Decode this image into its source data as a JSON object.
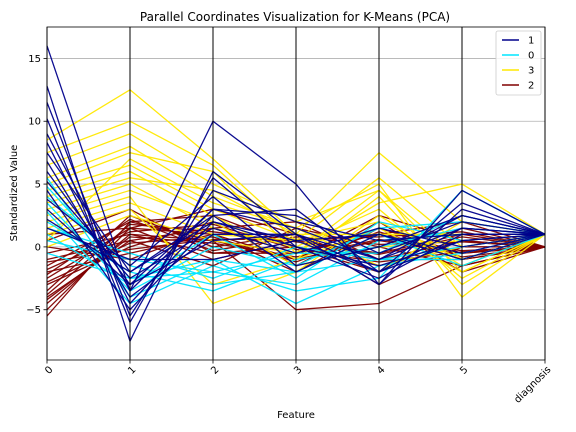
{
  "chart_data": {
    "type": "line",
    "subtype": "parallel-coordinates",
    "title": "Parallel Coordinates Visualization for K-Means (PCA)",
    "xlabel": "Feature",
    "ylabel": "Standardized Value",
    "categories": [
      "0",
      "1",
      "2",
      "3",
      "4",
      "5",
      "diagnosis"
    ],
    "ylim": [
      -9,
      17.5
    ],
    "yticks": [
      -5,
      0,
      5,
      10,
      15
    ],
    "grid": true,
    "legend_position": "top-right",
    "series": [
      {
        "name": "1",
        "color": "#00008b",
        "lines": [
          [
            16.0,
            -3.5,
            10.0,
            5.0,
            -3.0,
            4.5,
            1.0
          ],
          [
            12.8,
            -7.5,
            6.0,
            1.0,
            -2.0,
            3.5,
            1.0
          ],
          [
            11.5,
            -5.5,
            4.5,
            2.0,
            0.5,
            1.0,
            1.0
          ],
          [
            10.2,
            -6.0,
            5.5,
            0.0,
            -1.5,
            0.5,
            1.0
          ],
          [
            9.0,
            -3.5,
            3.0,
            1.5,
            -1.0,
            2.5,
            1.0
          ],
          [
            8.3,
            -4.5,
            2.5,
            3.0,
            -2.0,
            1.5,
            1.0
          ],
          [
            7.5,
            -2.0,
            2.0,
            0.5,
            1.0,
            -0.5,
            1.0
          ],
          [
            6.8,
            -4.0,
            1.0,
            1.0,
            -3.0,
            3.0,
            1.0
          ],
          [
            6.0,
            -3.0,
            3.0,
            2.5,
            -0.5,
            2.0,
            1.0
          ],
          [
            5.2,
            -2.5,
            1.5,
            -0.5,
            1.5,
            0.0,
            1.0
          ],
          [
            4.5,
            -5.0,
            2.0,
            0.0,
            -2.5,
            1.0,
            1.0
          ],
          [
            3.8,
            -1.5,
            4.0,
            -1.5,
            0.0,
            2.5,
            1.0
          ],
          [
            3.0,
            -3.0,
            0.5,
            1.0,
            -1.0,
            1.5,
            1.0
          ],
          [
            2.2,
            -2.0,
            2.5,
            -2.0,
            1.0,
            -1.0,
            1.0
          ],
          [
            1.5,
            -1.0,
            -1.0,
            0.5,
            -2.0,
            0.5,
            1.0
          ]
        ]
      },
      {
        "name": "0",
        "color": "#00e5ff",
        "lines": [
          [
            5.5,
            -4.0,
            -1.0,
            -4.5,
            -1.5,
            -0.5,
            1.0
          ],
          [
            4.8,
            -2.5,
            -2.0,
            -3.0,
            0.5,
            1.0,
            1.0
          ],
          [
            4.0,
            -1.5,
            -3.0,
            -2.0,
            -1.0,
            0.0,
            1.0
          ],
          [
            3.5,
            -3.5,
            0.0,
            -1.5,
            1.5,
            2.0,
            1.0
          ],
          [
            2.8,
            -4.5,
            -1.5,
            -3.5,
            -2.5,
            4.5,
            1.0
          ],
          [
            2.0,
            -2.0,
            -3.5,
            -1.0,
            0.0,
            1.5,
            1.0
          ],
          [
            1.5,
            -0.5,
            -2.5,
            0.0,
            -1.0,
            -1.0,
            1.0
          ],
          [
            1.0,
            -3.0,
            1.0,
            -2.5,
            2.0,
            0.5,
            1.0
          ],
          [
            0.5,
            -1.0,
            -2.0,
            -0.5,
            -0.5,
            2.5,
            1.0
          ],
          [
            -0.5,
            -2.5,
            -1.0,
            -2.0,
            1.0,
            -1.5,
            1.0
          ]
        ]
      },
      {
        "name": "3",
        "color": "#ffe800",
        "lines": [
          [
            8.5,
            12.5,
            7.0,
            1.0,
            7.5,
            2.0,
            1.0
          ],
          [
            7.5,
            10.0,
            6.5,
            0.5,
            5.5,
            0.0,
            1.0
          ],
          [
            6.5,
            9.0,
            5.0,
            2.0,
            4.5,
            -2.0,
            1.0
          ],
          [
            5.5,
            8.0,
            4.0,
            1.5,
            5.0,
            -4.0,
            1.0
          ],
          [
            5.0,
            7.5,
            6.0,
            -0.5,
            3.5,
            5.0,
            1.0
          ],
          [
            4.5,
            6.5,
            3.0,
            0.5,
            2.0,
            -1.0,
            1.0
          ],
          [
            4.0,
            6.0,
            2.5,
            -1.0,
            4.0,
            -3.0,
            1.0
          ],
          [
            3.5,
            5.5,
            4.5,
            1.0,
            1.0,
            1.0,
            1.0
          ],
          [
            3.0,
            5.0,
            1.5,
            0.0,
            3.0,
            -2.5,
            1.0
          ],
          [
            2.5,
            4.5,
            2.0,
            -1.5,
            0.0,
            0.5,
            1.0
          ],
          [
            2.0,
            4.0,
            -4.5,
            -2.0,
            2.5,
            -1.5,
            1.0
          ],
          [
            1.5,
            3.5,
            1.0,
            0.5,
            -2.0,
            2.0,
            1.0
          ],
          [
            1.0,
            3.0,
            -3.0,
            -1.0,
            1.5,
            -2.0,
            1.0
          ],
          [
            0.5,
            7.0,
            3.5,
            1.5,
            -1.5,
            0.0,
            1.0
          ],
          [
            0.0,
            2.5,
            0.5,
            -0.5,
            4.5,
            -1.0,
            1.0
          ]
        ]
      },
      {
        "name": "2",
        "color": "#800000",
        "lines": [
          [
            -5.5,
            2.0,
            0.5,
            -5.0,
            -4.5,
            -1.5,
            0.0
          ],
          [
            -5.0,
            1.5,
            1.0,
            -1.0,
            0.5,
            -0.5,
            0.0
          ],
          [
            -4.5,
            1.0,
            -0.5,
            0.0,
            -1.0,
            0.5,
            0.0
          ],
          [
            -4.0,
            0.5,
            1.5,
            -0.5,
            1.0,
            -1.0,
            0.0
          ],
          [
            -3.5,
            2.5,
            0.0,
            1.0,
            -1.5,
            0.0,
            0.0
          ],
          [
            -3.0,
            0.0,
            2.0,
            -1.5,
            2.0,
            -2.0,
            0.0
          ],
          [
            -2.5,
            1.5,
            -1.0,
            0.5,
            -0.5,
            1.0,
            0.0
          ],
          [
            -2.0,
            -0.5,
            1.0,
            -2.0,
            1.5,
            -0.5,
            0.0
          ],
          [
            -1.5,
            2.0,
            2.5,
            0.0,
            -2.0,
            1.5,
            0.0
          ],
          [
            -1.0,
            0.5,
            -1.5,
            1.5,
            0.0,
            -1.5,
            0.0
          ],
          [
            -0.5,
            1.0,
            0.5,
            -1.0,
            2.5,
            0.5,
            0.0
          ],
          [
            0.0,
            -1.0,
            1.5,
            2.0,
            -1.0,
            -1.0,
            0.0
          ],
          [
            0.5,
            3.0,
            -0.5,
            -0.5,
            1.0,
            2.0,
            0.0
          ],
          [
            1.0,
            1.5,
            3.0,
            1.0,
            -3.0,
            0.0,
            0.0
          ],
          [
            -4.2,
            0.8,
            0.3,
            -0.8,
            0.6,
            -0.3,
            0.0
          ],
          [
            -3.8,
            1.8,
            1.2,
            0.4,
            -0.6,
            0.8,
            0.0
          ],
          [
            -2.8,
            0.3,
            0.8,
            -1.2,
            1.2,
            -0.8,
            0.0
          ],
          [
            -2.2,
            2.2,
            -0.3,
            0.8,
            0.2,
            0.4,
            0.0
          ],
          [
            -1.8,
            1.2,
            1.8,
            -0.2,
            -1.2,
            -0.4,
            0.0
          ],
          [
            -1.2,
            -0.2,
            0.6,
            0.6,
            0.8,
            1.2,
            0.0
          ]
        ]
      }
    ]
  }
}
